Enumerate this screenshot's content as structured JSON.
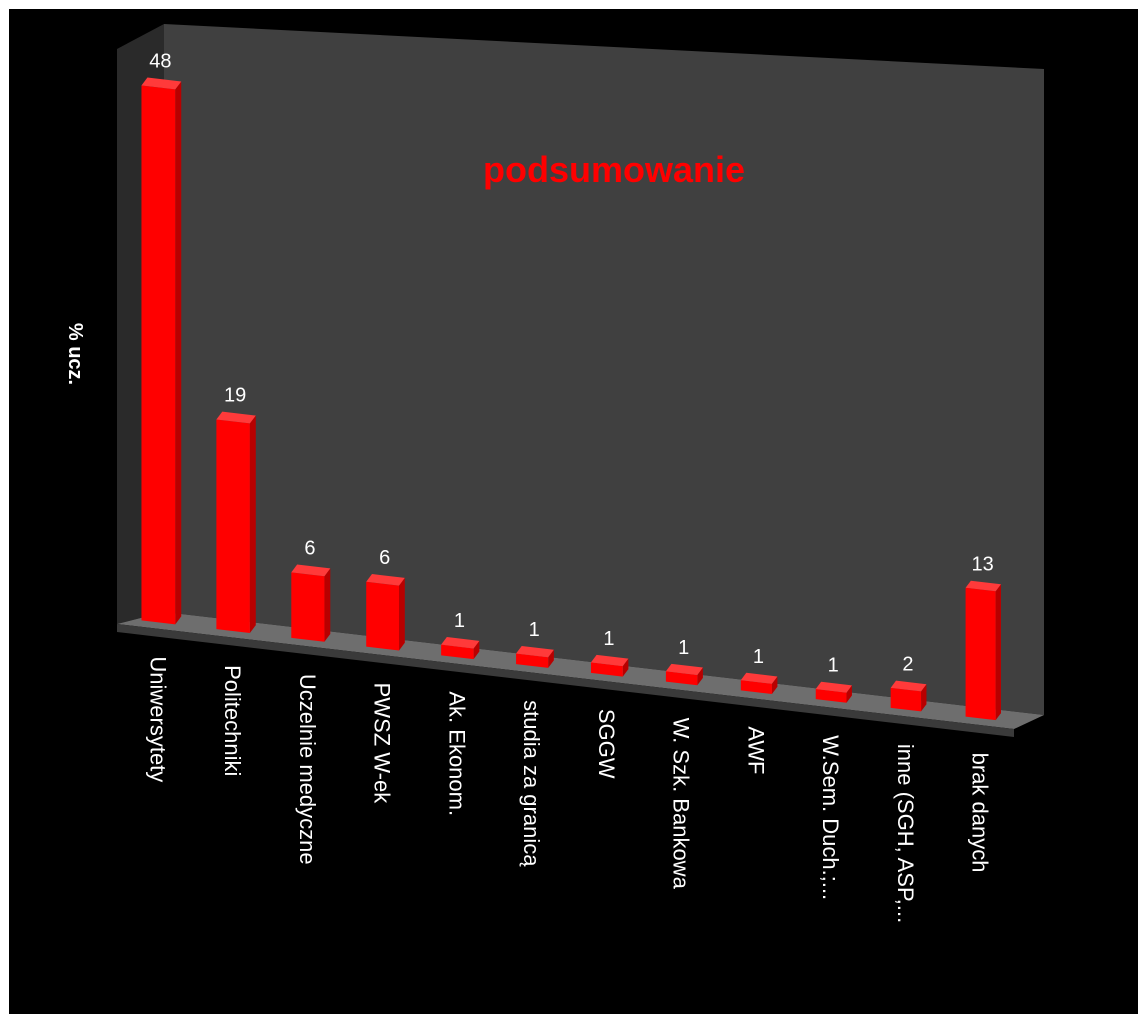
{
  "chart_data": {
    "type": "bar",
    "title": "podsumowanie",
    "ylabel": "% ucz.",
    "xlabel": "",
    "categories": [
      "Uniwersytety",
      "Politechniki",
      "Uczelnie medyczne",
      "PWSZ W-ek",
      "Ak. Ekonom.",
      "studia za granicą",
      "SGGW",
      "W. Szk. Bankowa",
      "AWF",
      "W.Sem. Duch.;...",
      "inne (SGH, ASP,...",
      "brak danych"
    ],
    "values": [
      48,
      19,
      6,
      6,
      1,
      1,
      1,
      1,
      1,
      1,
      2,
      13
    ],
    "data_labels": [
      "48",
      "19",
      "6",
      "6",
      "1",
      "1",
      "1",
      "1",
      "1",
      "1",
      "2",
      "13"
    ],
    "ylim": [
      0,
      50
    ],
    "grid": false,
    "legend": "none",
    "style": "3d-perspective",
    "colors": {
      "bar": "#ff0000",
      "bar_side": "#b80000",
      "bar_top": "#ff3a3a",
      "title": "#ff0000",
      "background": "#000000",
      "back_wall": "#404040",
      "side_wall": "#2a2a2a",
      "floor": "#6e6e6e",
      "text": "#ffffff"
    }
  }
}
